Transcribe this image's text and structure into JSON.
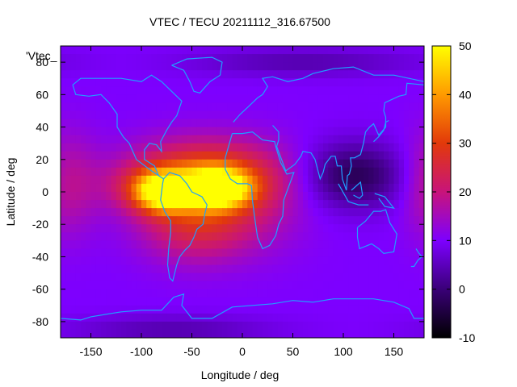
{
  "chart_data": {
    "type": "heatmap",
    "title": "VTEC / TECU 20211112_316.67500",
    "xlabel": "Longitude / deg",
    "ylabel": "Latitude / deg",
    "xlim": [
      -180,
      180
    ],
    "ylim": [
      -90,
      90
    ],
    "x_ticks": [
      -150,
      -100,
      -50,
      0,
      50,
      100,
      150
    ],
    "y_ticks": [
      -80,
      -60,
      -40,
      -20,
      0,
      20,
      40,
      60,
      80
    ],
    "colorbar": {
      "range": [
        -10,
        50
      ],
      "ticks": [
        -10,
        0,
        10,
        20,
        30,
        40,
        50
      ],
      "palette": [
        "#000000",
        "#3a0078",
        "#7d00ff",
        "#c8147a",
        "#e2390a",
        "#ff9a00",
        "#ffff00"
      ]
    },
    "legend_entry": "'Vtec_",
    "coastline_color": "#1fa0ff",
    "grid": false,
    "background_value": 10,
    "features": [
      {
        "lon": -25,
        "lat": 2,
        "value": 48,
        "lon_spread": 22,
        "lat_spread": 8
      },
      {
        "lon": -78,
        "lat": 0,
        "value": 44,
        "lon_spread": 18,
        "lat_spread": 8
      },
      {
        "lon": -40,
        "lat": 10,
        "value": 33,
        "lon_spread": 50,
        "lat_spread": 15
      },
      {
        "lon": -45,
        "lat": -20,
        "value": 25,
        "lon_spread": 38,
        "lat_spread": 16
      },
      {
        "lon": -100,
        "lat": 2,
        "value": 18,
        "lon_spread": 25,
        "lat_spread": 10
      },
      {
        "lon": 20,
        "lat": -5,
        "value": 15,
        "lon_spread": 35,
        "lat_spread": 22
      },
      {
        "lon": -165,
        "lat": 5,
        "value": 16,
        "lon_spread": 18,
        "lat_spread": 22
      },
      {
        "lon": 175,
        "lat": 5,
        "value": 14,
        "lon_spread": 15,
        "lat_spread": 22
      },
      {
        "lon": 110,
        "lat": 10,
        "value": -3,
        "lon_spread": 35,
        "lat_spread": 14
      },
      {
        "lon": -70,
        "lat": -85,
        "value": 4,
        "lon_spread": 70,
        "lat_spread": 6
      },
      {
        "lon": 60,
        "lat": 80,
        "value": 4,
        "lon_spread": 80,
        "lat_spread": 6
      }
    ]
  }
}
